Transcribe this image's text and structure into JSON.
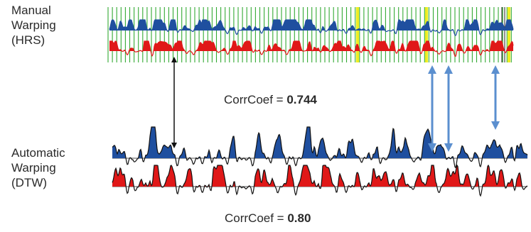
{
  "manual": {
    "lines": [
      "Manual",
      "Warping",
      "(HRS)"
    ],
    "corr_label": "CorrCoef = ",
    "corr_value": "0.744"
  },
  "automatic": {
    "lines": [
      "Automatic",
      "Warping",
      "(DTW)"
    ],
    "corr_label": "CorrCoef = ",
    "corr_value": "0.80"
  },
  "colors": {
    "grid": "#33aa33",
    "highlight": "#eeee22",
    "blue_series": "#1f4f9f",
    "red_series": "#e01818",
    "black_arrow": "#111111",
    "blue_arrow": "#5b8fcf"
  }
}
